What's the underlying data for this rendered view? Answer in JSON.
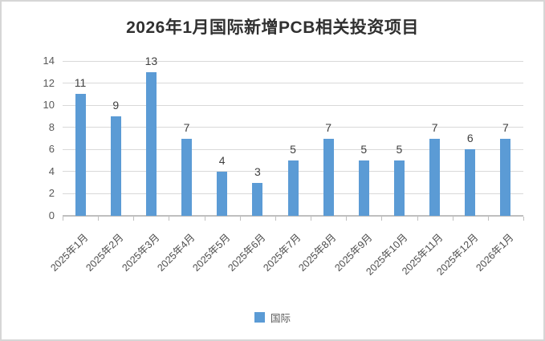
{
  "title": "2026年1月国际新增PCB相关投资项目",
  "legend": {
    "label": "国际"
  },
  "colors": {
    "bar": "#5B9BD5",
    "gridline": "#D9D9D9",
    "axis_line": "#BFBFBF",
    "axis_text": "#595959",
    "data_label": "#3F3F3F",
    "title_text": "#303030",
    "frame_border": "#D6D6D6"
  },
  "chart_data": {
    "type": "bar",
    "title": "2026年1月国际新增PCB相关投资项目",
    "categories": [
      "2025年1月",
      "2025年2月",
      "2025年3月",
      "2025年4月",
      "2025年5月",
      "2025年6月",
      "2025年7月",
      "2025年8月",
      "2025年9月",
      "2025年10月",
      "2025年11月",
      "2025年12月",
      "2026年1月"
    ],
    "series": [
      {
        "name": "国际",
        "values": [
          11,
          9,
          13,
          7,
          4,
          3,
          5,
          7,
          5,
          5,
          7,
          6,
          7
        ]
      }
    ],
    "xlabel": "",
    "ylabel": "",
    "ylim": [
      0,
      14
    ],
    "yticks": [
      0,
      2,
      4,
      6,
      8,
      10,
      12,
      14
    ],
    "grid": true,
    "data_labels": "outside-end",
    "x_label_rotation": -45,
    "legend_position": "bottom"
  }
}
